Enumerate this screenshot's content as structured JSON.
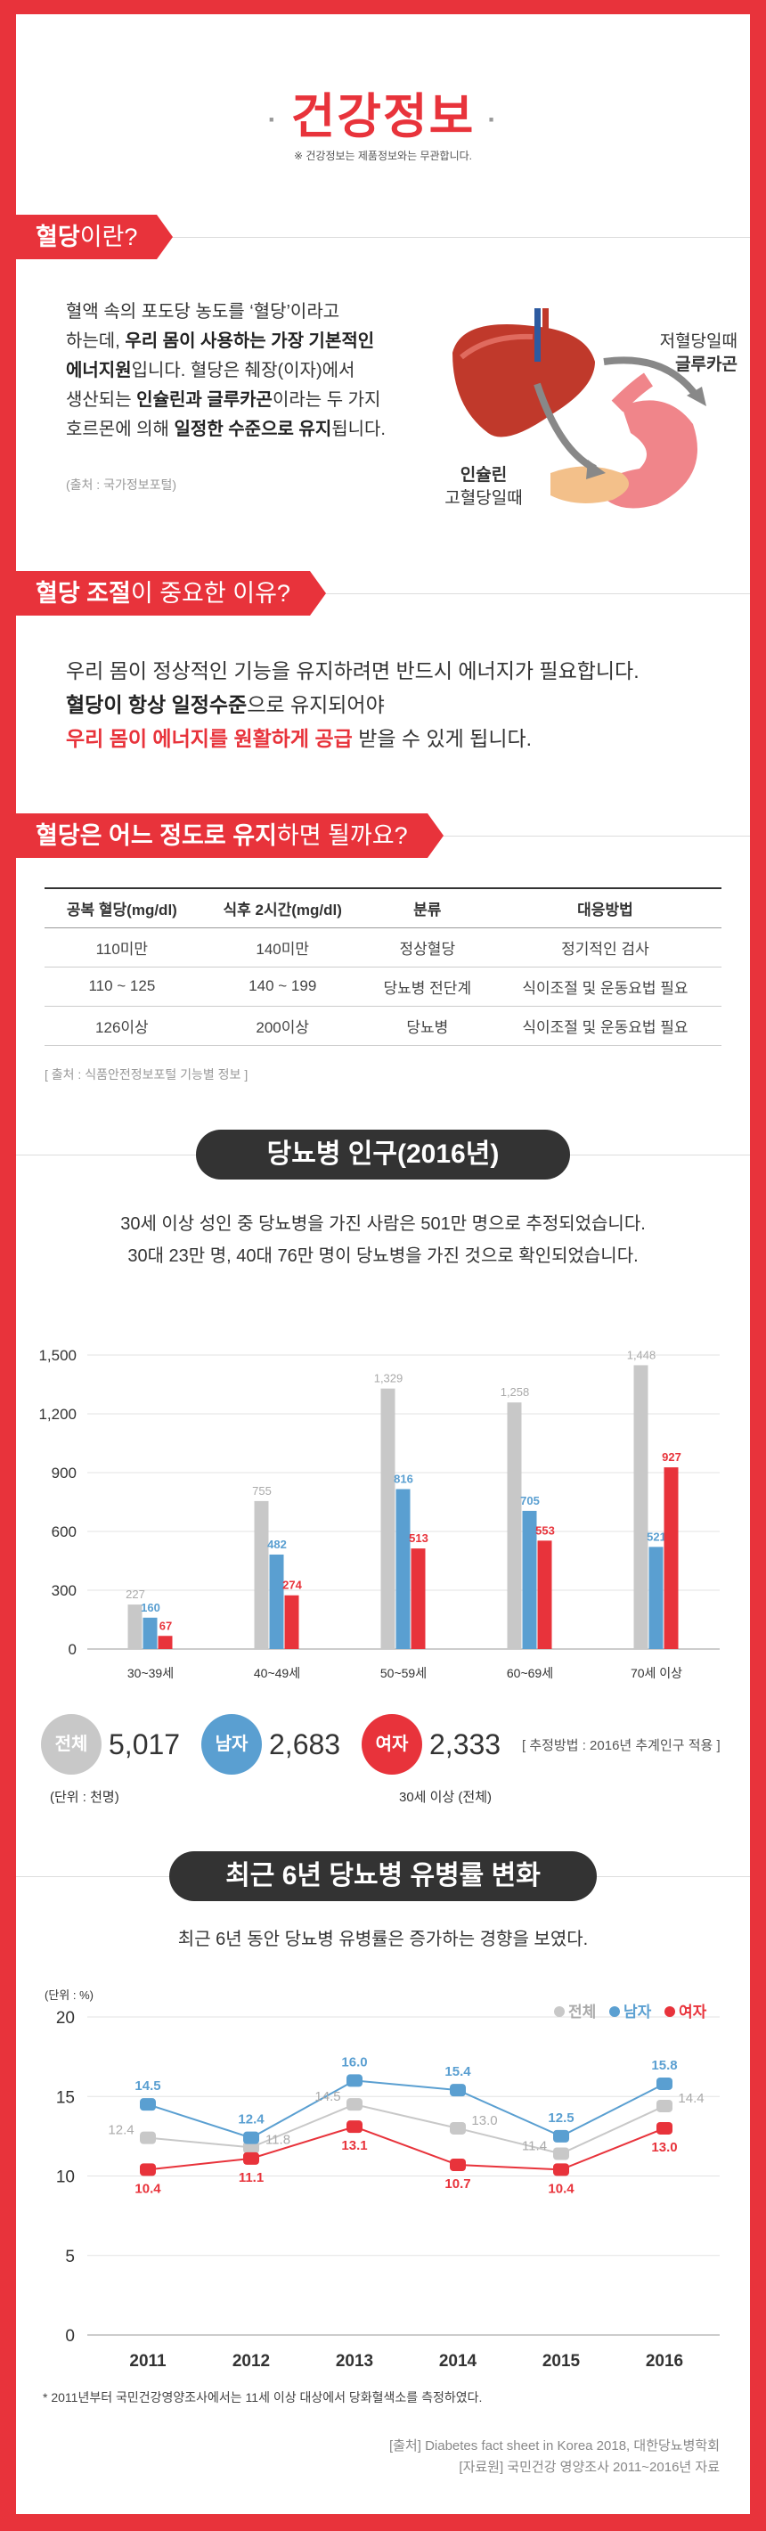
{
  "header": {
    "title": "건강정보",
    "note": "※ 건강정보는 제품정보와는 무관합니다."
  },
  "section1": {
    "tag_bold": "혈당",
    "tag_rest": "이란?",
    "lines": [
      {
        "parts": [
          {
            "t": "혈액 속의 포도당 농도를 ‘혈당’이라고",
            "b": false
          }
        ]
      },
      {
        "parts": [
          {
            "t": "하는데, ",
            "b": false
          },
          {
            "t": "우리 몸이 사용하는 가장 기본적인",
            "b": true
          }
        ]
      },
      {
        "parts": [
          {
            "t": "에너지원",
            "b": true
          },
          {
            "t": "입니다. 혈당은 췌장(이자)에서",
            "b": false
          }
        ]
      },
      {
        "parts": [
          {
            "t": "생산되는 ",
            "b": false
          },
          {
            "t": "인슐린과 글루카곤",
            "b": true
          },
          {
            "t": "이라는 두 가지",
            "b": false
          }
        ]
      },
      {
        "parts": [
          {
            "t": "호르몬에 의해 ",
            "b": false
          },
          {
            "t": "일정한 수준으로 유지",
            "b": true
          },
          {
            "t": "됩니다.",
            "b": false
          }
        ]
      }
    ],
    "source": "(출처 : 국가정보포털)",
    "diagram": {
      "low_line1": "저혈당일때",
      "low_line2": "글루카곤",
      "high_line1": "인슐린",
      "high_line2": "고혈당일때"
    }
  },
  "section2": {
    "tag_bold": "혈당 조절",
    "tag_rest": "이 중요한 이유?",
    "line1": "우리 몸이 정상적인 기능을 유지하려면 반드시 에너지가 필요합니다.",
    "line2_bold": "혈당이 항상 일정수준",
    "line2_rest": "으로 유지되어야",
    "line3_red": "우리 몸이 에너지를 원활하게 공급",
    "line3_rest": " 받을 수 있게 됩니다."
  },
  "section3": {
    "tag_bold": "혈당은 어느 정도로 유지",
    "tag_rest": "하면 될까요?",
    "headers": [
      "공복 혈당(mg/dl)",
      "식후 2시간(mg/dl)",
      "분류",
      "대응방법"
    ],
    "rows": [
      [
        "110미만",
        "140미만",
        "정상혈당",
        "정기적인 검사"
      ],
      [
        "110 ~ 125",
        "140 ~ 199",
        "당뇨병 전단계",
        "식이조절 및 운동요법 필요"
      ],
      [
        "126이상",
        "200이상",
        "당뇨병",
        "식이조절 및 운동요법 필요"
      ]
    ],
    "source": "[ 출처 : 식품안전정보포털 기능별 정보 ]"
  },
  "section4": {
    "pill": "당뇨병 인구(2016년)",
    "desc1": "30세 이상 성인 중 당뇨병을 가진 사람은 501만 명으로 추정되었습니다.",
    "desc2": "30대 23만 명, 40대 76만 명이 당뇨병을 가진 것으로 확인되었습니다.",
    "totals": {
      "all_label": "전체",
      "all_value": "5,017",
      "male_label": "남자",
      "male_value": "2,683",
      "female_label": "여자",
      "female_value": "2,333",
      "method": "[ 추정방법 : 2016년 추계인구 적용 ]",
      "unit": "(단위 : 천명)",
      "scope": "30세 이상 (전체)"
    }
  },
  "section5": {
    "pill": "최근 6년 당뇨병 유병률 변화",
    "desc": "최근 6년 동안 당뇨병 유병률은 증가하는 경향을 보였다.",
    "unit": "(단위 : %)",
    "footnote": "* 2011년부터 국민건강영양조사에서는 11세 이상 대상에서 당화혈색소를 측정하였다.",
    "source1": "[출처]  Diabetes fact sheet in Korea 2018, 대한당뇨병학회",
    "source2": "[자료원]  국민건강 영양조사 2011~2016년 자료"
  },
  "colors": {
    "red": "#e8333b",
    "blue": "#5a9fd1",
    "gray": "#c8c8c8",
    "dark": "#333333"
  },
  "chart_data": [
    {
      "type": "bar",
      "categories": [
        "30~39세",
        "40~49세",
        "50~59세",
        "60~69세",
        "70세 이상"
      ],
      "series": [
        {
          "name": "전체",
          "values": [
            227,
            755,
            1329,
            1258,
            1448
          ]
        },
        {
          "name": "남자",
          "values": [
            160,
            482,
            816,
            705,
            521
          ]
        },
        {
          "name": "여자",
          "values": [
            67,
            274,
            513,
            553,
            927
          ]
        }
      ],
      "ylim": [
        0,
        1500
      ],
      "yticks": [
        "0",
        "300",
        "600",
        "900",
        "1,200",
        "1,500"
      ],
      "grid": true
    },
    {
      "type": "line",
      "x": [
        "2011",
        "2012",
        "2013",
        "2014",
        "2015",
        "2016"
      ],
      "series": [
        {
          "name": "전체",
          "values": [
            12.4,
            11.8,
            14.5,
            13.0,
            11.4,
            14.4
          ]
        },
        {
          "name": "남자",
          "values": [
            14.5,
            12.4,
            16.0,
            15.4,
            12.5,
            15.8
          ]
        },
        {
          "name": "여자",
          "values": [
            10.4,
            11.1,
            13.1,
            10.7,
            10.4,
            13.0
          ]
        }
      ],
      "ylim": [
        0,
        20
      ],
      "yticks": [
        "0",
        "5",
        "10",
        "15",
        "20"
      ],
      "legend": "top-right",
      "grid": true
    }
  ]
}
